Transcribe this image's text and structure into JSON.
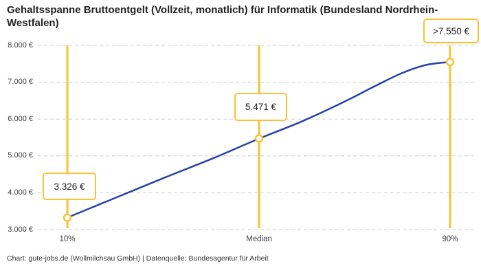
{
  "title": "Gehaltsspanne Bruttoentgelt (Vollzeit, monatlich) für Informatik (Bundesland Nordrhein-Westfalen)",
  "attribution": "Chart: gute-jobs.de (Wollmilchsau GmbH) | Datenquelle: Bundesagentur für Arbeit",
  "colors": {
    "accent": "#F7C233",
    "line": "#2643A3",
    "grid": "#CCCCCC",
    "title_text": "#222222",
    "axis_text": "#3C3C3C"
  },
  "chart_data": {
    "type": "line",
    "title": "Gehaltsspanne Bruttoentgelt (Vollzeit, monatlich) für Informatik (Bundesland Nordrhein-Westfalen)",
    "categories": [
      "10%",
      "Median",
      "90%"
    ],
    "values": [
      3326,
      5471,
      7550
    ],
    "value_labels": [
      "3.326 €",
      "5.471 €",
      ">7.550 €"
    ],
    "unit": "€ pro Monat",
    "ylim": [
      3000,
      8000
    ],
    "grid": true,
    "legend": "none",
    "y_ticks": [
      {
        "label": "8.000 €",
        "value": 8000
      },
      {
        "label": "7.000 €",
        "value": 7000
      },
      {
        "label": "6.000 €",
        "value": 6000
      },
      {
        "label": "5.000 €",
        "value": 5000
      },
      {
        "label": "4.000 €",
        "value": 4000
      },
      {
        "label": "3.000 €",
        "value": 3000
      }
    ],
    "curve_samples": [
      {
        "x": 0.0,
        "value": 3326
      },
      {
        "x": 0.111,
        "value": 3800
      },
      {
        "x": 0.255,
        "value": 4415
      },
      {
        "x": 0.381,
        "value": 4937
      },
      {
        "x": 0.501,
        "value": 5471
      },
      {
        "x": 0.614,
        "value": 5942
      },
      {
        "x": 0.722,
        "value": 6463
      },
      {
        "x": 0.803,
        "value": 6892
      },
      {
        "x": 0.874,
        "value": 7246
      },
      {
        "x": 0.937,
        "value": 7469
      },
      {
        "x": 1.0,
        "value": 7550
      }
    ]
  }
}
